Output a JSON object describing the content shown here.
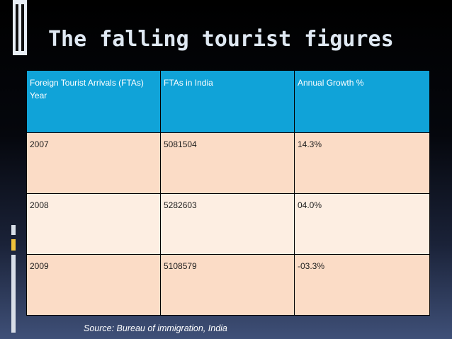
{
  "slide": {
    "title": "The falling tourist figures",
    "source": "Source: Bureau of immigration, India"
  },
  "table": {
    "headers": [
      "Foreign Tourist Arrivals (FTAs) Year",
      "FTAs in India",
      "Annual Growth %"
    ],
    "rows": [
      [
        "2007",
        "5081504",
        "14.3%"
      ],
      [
        "2008",
        "5282603",
        "04.0%"
      ],
      [
        "2009",
        "5108579",
        "-03.3%"
      ]
    ]
  },
  "colors": {
    "header_bg": "#10a3d8",
    "row_odd_bg": "#fbdcc6",
    "row_even_bg": "#fdeee2",
    "title_text": "#dfe8f2"
  }
}
